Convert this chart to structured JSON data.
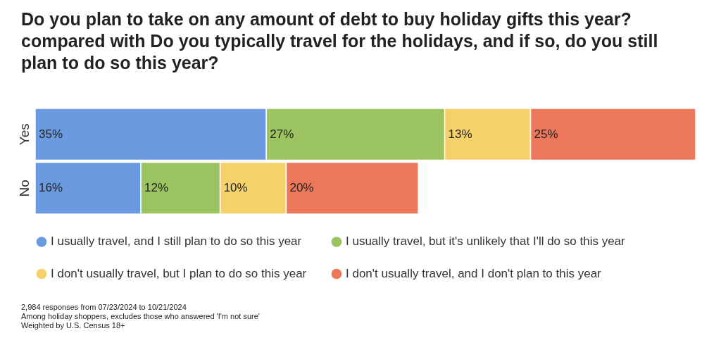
{
  "chart_data": {
    "type": "bar",
    "orientation": "horizontal",
    "stacked": true,
    "title": "Do you plan to take on any amount of debt to buy holiday gifts this year? compared with Do you typically travel for the holidays, and if so, do you still plan to do so this year?",
    "categories": [
      "Yes",
      "No"
    ],
    "series": [
      {
        "name": "I usually travel, and I still plan to do so this year",
        "color": "#6a9be0",
        "values": [
          35,
          16
        ],
        "value_labels": [
          "35%",
          "16%"
        ]
      },
      {
        "name": "I usually travel, but it's unlikely that I'll do so this year",
        "color": "#9bc35f",
        "values": [
          27,
          12
        ],
        "value_labels": [
          "27%",
          "12%"
        ]
      },
      {
        "name": "I don't usually travel, but I plan to do so this year",
        "color": "#f6d06b",
        "values": [
          13,
          10
        ],
        "value_labels": [
          "13%",
          "10%"
        ]
      },
      {
        "name": "I don't usually travel, and I don't plan to this year",
        "color": "#ec775a",
        "values": [
          25,
          20
        ],
        "value_labels": [
          "25%",
          "20%"
        ]
      }
    ],
    "tick_labels": "y",
    "legend": "bottom",
    "annotations": [
      "2,984 responses from 07/23/2024 to 10/21/2024",
      "Among holiday shoppers, excludes those who answered 'I'm not sure'",
      "Weighted by U.S. Census 18+"
    ]
  }
}
